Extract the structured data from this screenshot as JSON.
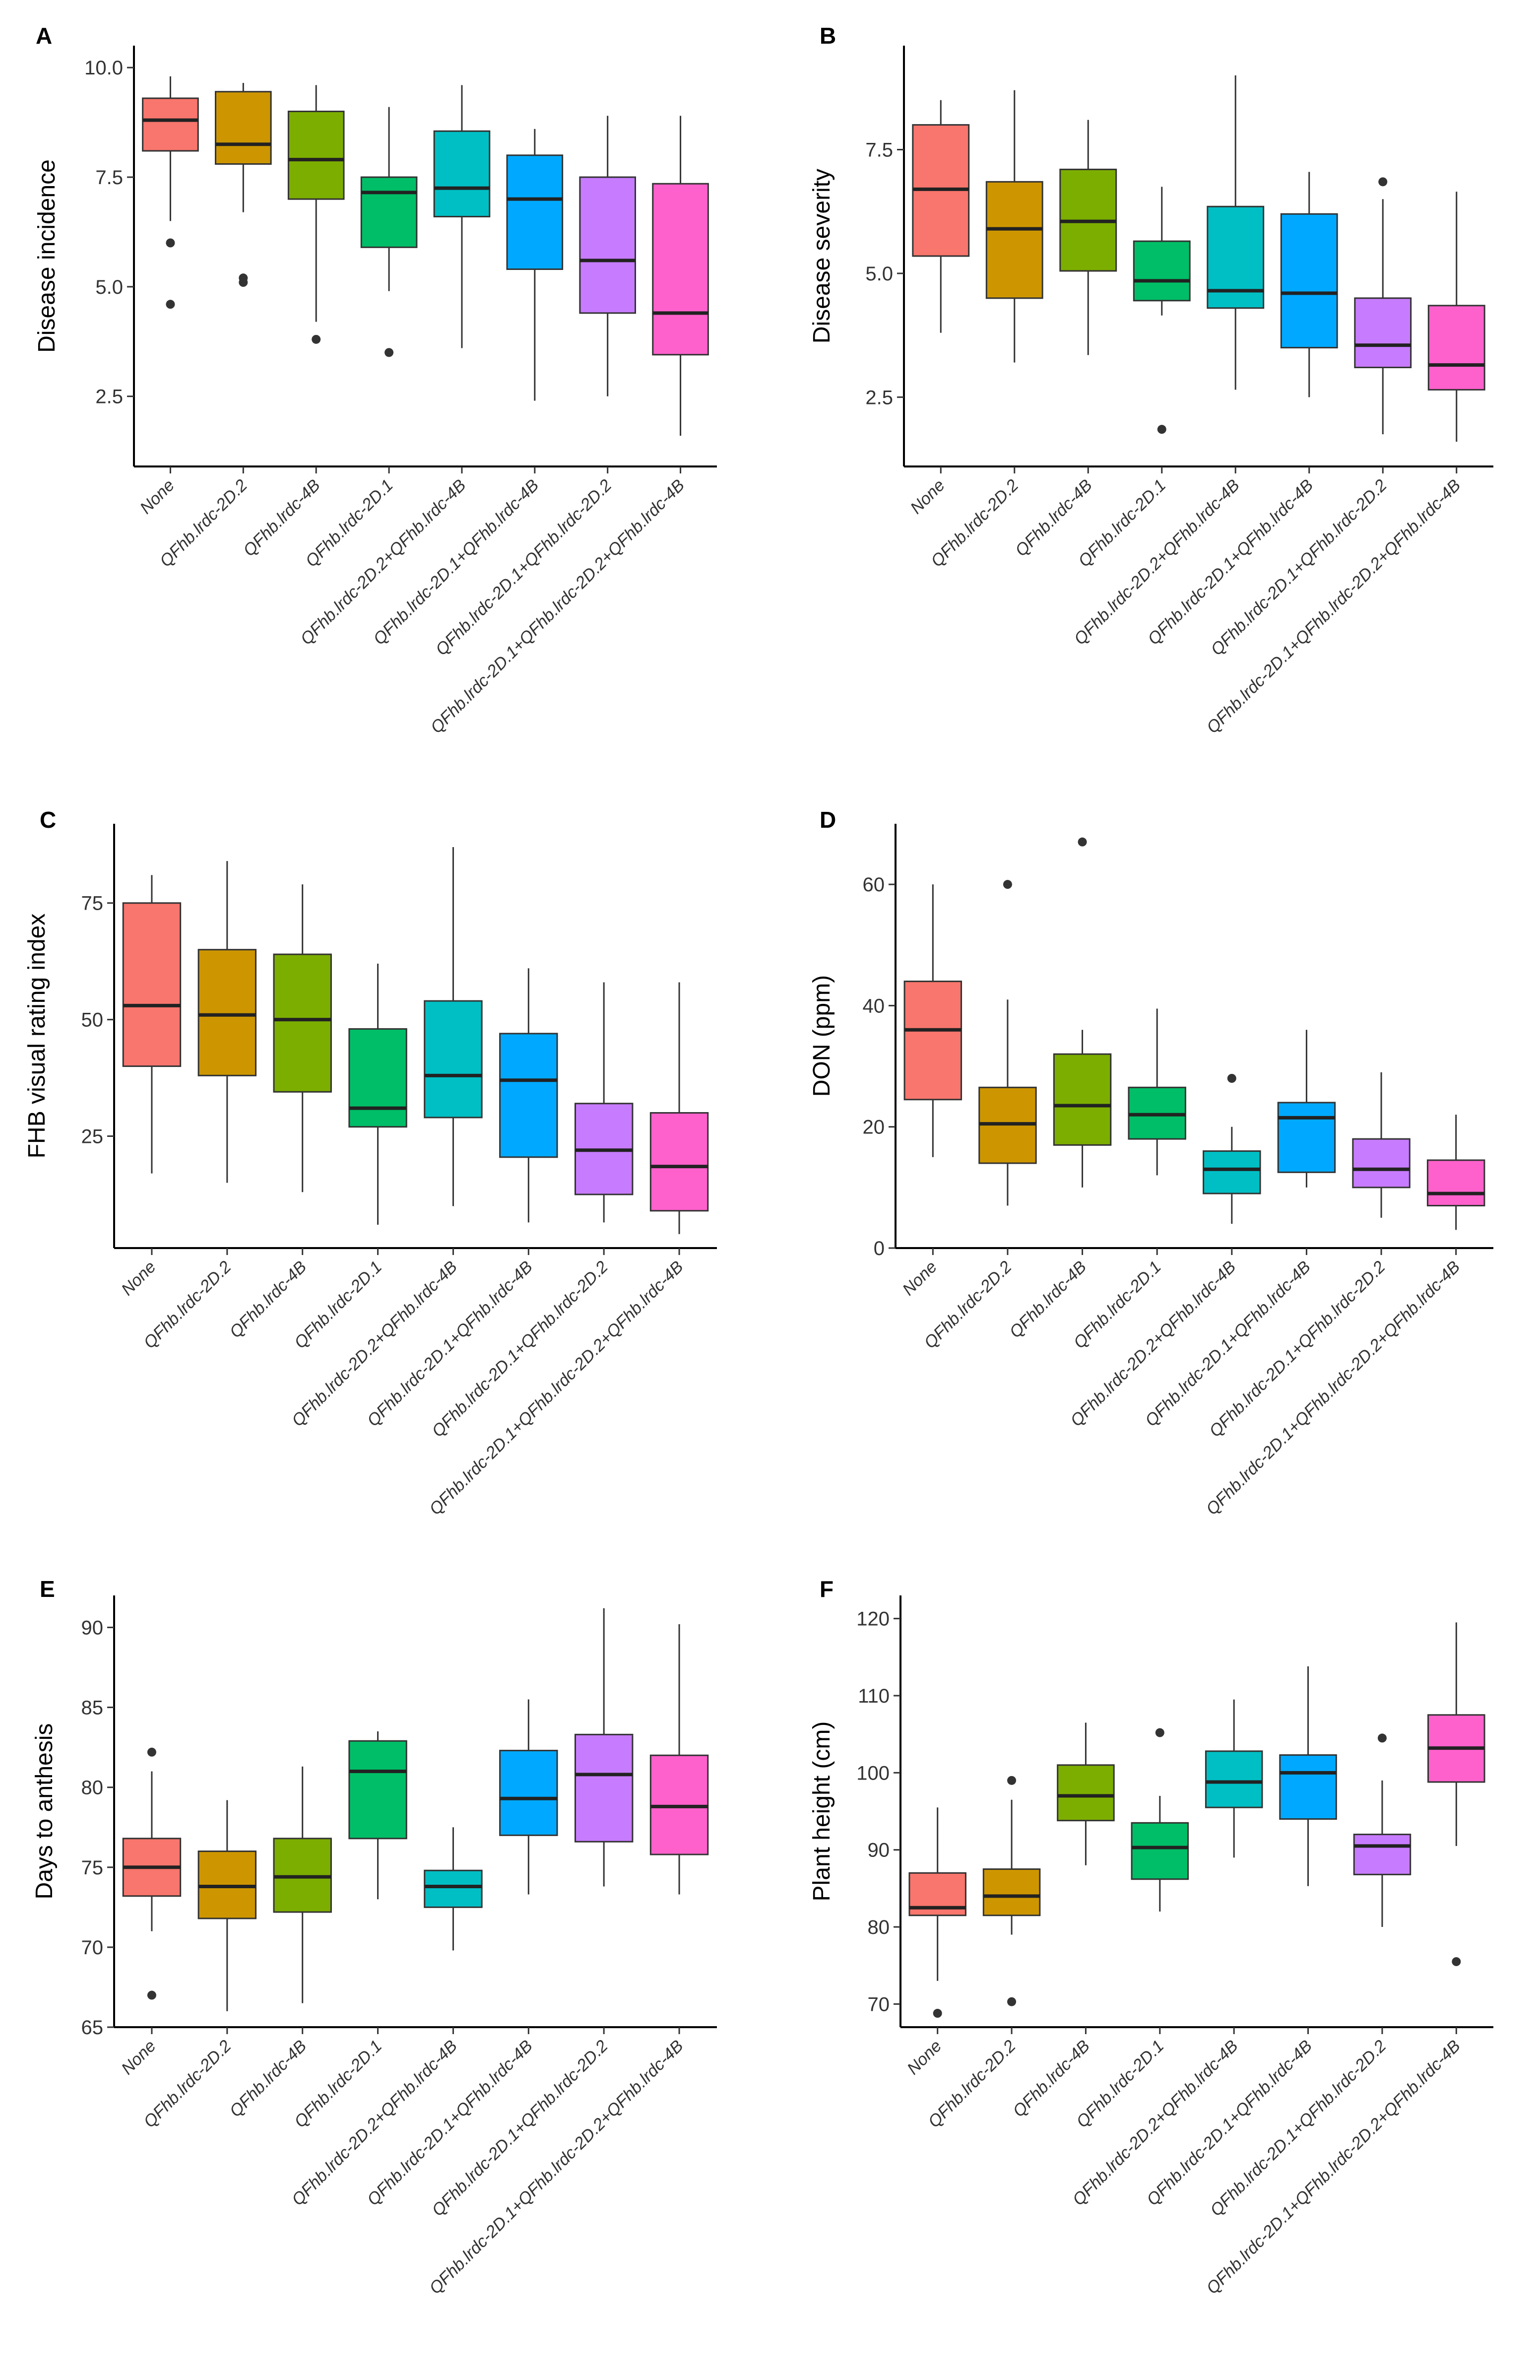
{
  "chart_data": [
    {
      "panel": "A",
      "type": "boxplot",
      "ylabel": "Disease incidence",
      "ylim": [
        0.9,
        10.5
      ],
      "yticks": [
        10.0,
        7.5,
        5.0,
        2.5
      ],
      "ytick_labels": [
        "10.0",
        "7.5",
        "5.0",
        "2.5"
      ],
      "categories": [
        "None",
        "QFhb.lrdc-2D.2",
        "QFhb.lrdc-4B",
        "QFhb.lrdc-2D.1",
        "QFhb.lrdc-2D.2+QFhb.lrdc-4B",
        "QFhb.lrdc-2D.1+QFhb.lrdc-4B",
        "QFhb.lrdc-2D.1+QFhb.lrdc-2D.2",
        "QFhb.lrdc-2D.1+QFhb.lrdc-2D.2+QFhb.lrdc-4B"
      ],
      "boxes": [
        {
          "min": 6.5,
          "q1": 8.1,
          "median": 8.8,
          "q3": 9.3,
          "max": 9.8,
          "outliers": [
            6.0,
            4.6
          ]
        },
        {
          "min": 6.7,
          "q1": 7.8,
          "median": 8.25,
          "q3": 9.45,
          "max": 9.65,
          "outliers": [
            5.2,
            5.1
          ]
        },
        {
          "min": 4.2,
          "q1": 7.0,
          "median": 7.9,
          "q3": 9.0,
          "max": 9.6,
          "outliers": [
            3.8
          ]
        },
        {
          "min": 4.9,
          "q1": 5.9,
          "median": 7.15,
          "q3": 7.5,
          "max": 9.1,
          "outliers": [
            3.5
          ]
        },
        {
          "min": 3.6,
          "q1": 6.6,
          "median": 7.25,
          "q3": 8.55,
          "max": 9.6,
          "outliers": []
        },
        {
          "min": 2.4,
          "q1": 5.4,
          "median": 7.0,
          "q3": 8.0,
          "max": 8.6,
          "outliers": []
        },
        {
          "min": 2.5,
          "q1": 4.4,
          "median": 5.6,
          "q3": 7.5,
          "max": 8.9,
          "outliers": []
        },
        {
          "min": 1.6,
          "q1": 3.45,
          "median": 4.4,
          "q3": 7.35,
          "max": 8.9,
          "outliers": []
        }
      ]
    },
    {
      "panel": "B",
      "type": "boxplot",
      "ylabel": "Disease severity",
      "ylim": [
        1.1,
        9.6
      ],
      "yticks": [
        7.5,
        5.0,
        2.5
      ],
      "ytick_labels": [
        "7.5",
        "5.0",
        "2.5"
      ],
      "categories": [
        "None",
        "QFhb.lrdc-2D.2",
        "QFhb.lrdc-4B",
        "QFhb.lrdc-2D.1",
        "QFhb.lrdc-2D.2+QFhb.lrdc-4B",
        "QFhb.lrdc-2D.1+QFhb.lrdc-4B",
        "QFhb.lrdc-2D.1+QFhb.lrdc-2D.2",
        "QFhb.lrdc-2D.1+QFhb.lrdc-2D.2+QFhb.lrdc-4B"
      ],
      "boxes": [
        {
          "min": 3.8,
          "q1": 5.35,
          "median": 6.7,
          "q3": 8.0,
          "max": 8.5,
          "outliers": []
        },
        {
          "min": 3.2,
          "q1": 4.5,
          "median": 5.9,
          "q3": 6.85,
          "max": 8.7,
          "outliers": []
        },
        {
          "min": 3.35,
          "q1": 5.05,
          "median": 6.05,
          "q3": 7.1,
          "max": 8.1,
          "outliers": []
        },
        {
          "min": 4.15,
          "q1": 4.45,
          "median": 4.85,
          "q3": 5.65,
          "max": 6.75,
          "outliers": [
            1.85
          ]
        },
        {
          "min": 2.65,
          "q1": 4.3,
          "median": 4.65,
          "q3": 6.35,
          "max": 9.0,
          "outliers": []
        },
        {
          "min": 2.5,
          "q1": 3.5,
          "median": 4.6,
          "q3": 6.2,
          "max": 7.05,
          "outliers": []
        },
        {
          "min": 1.75,
          "q1": 3.1,
          "median": 3.55,
          "q3": 4.5,
          "max": 6.5,
          "outliers": [
            6.85
          ]
        },
        {
          "min": 1.6,
          "q1": 2.65,
          "median": 3.15,
          "q3": 4.35,
          "max": 6.65,
          "outliers": []
        }
      ]
    },
    {
      "panel": "C",
      "type": "boxplot",
      "ylabel": "FHB visual rating index",
      "ylim": [
        1,
        92
      ],
      "yticks": [
        75,
        50,
        25
      ],
      "ytick_labels": [
        "75",
        "50",
        "25"
      ],
      "categories": [
        "None",
        "QFhb.lrdc-2D.2",
        "QFhb.lrdc-4B",
        "QFhb.lrdc-2D.1",
        "QFhb.lrdc-2D.2+QFhb.lrdc-4B",
        "QFhb.lrdc-2D.1+QFhb.lrdc-4B",
        "QFhb.lrdc-2D.1+QFhb.lrdc-2D.2",
        "QFhb.lrdc-2D.1+QFhb.lrdc-2D.2+QFhb.lrdc-4B"
      ],
      "boxes": [
        {
          "min": 17,
          "q1": 40,
          "median": 53,
          "q3": 75,
          "max": 81,
          "outliers": []
        },
        {
          "min": 15,
          "q1": 38,
          "median": 51,
          "q3": 65,
          "max": 84,
          "outliers": []
        },
        {
          "min": 13,
          "q1": 34.5,
          "median": 50,
          "q3": 64,
          "max": 79,
          "outliers": []
        },
        {
          "min": 6,
          "q1": 27,
          "median": 31,
          "q3": 48,
          "max": 62,
          "outliers": []
        },
        {
          "min": 10,
          "q1": 29,
          "median": 38,
          "q3": 54,
          "max": 87,
          "outliers": []
        },
        {
          "min": 6.5,
          "q1": 20.5,
          "median": 37,
          "q3": 47,
          "max": 61,
          "outliers": []
        },
        {
          "min": 6.5,
          "q1": 12.5,
          "median": 22,
          "q3": 32,
          "max": 58,
          "outliers": []
        },
        {
          "min": 4,
          "q1": 9,
          "median": 18.5,
          "q3": 30,
          "max": 58,
          "outliers": []
        }
      ]
    },
    {
      "panel": "D",
      "type": "boxplot",
      "ylabel": "DON (ppm)",
      "ylim": [
        0,
        70
      ],
      "yticks": [
        60,
        40,
        20,
        0
      ],
      "ytick_labels": [
        "60",
        "40",
        "20",
        "0"
      ],
      "categories": [
        "None",
        "QFhb.lrdc-2D.2",
        "QFhb.lrdc-4B",
        "QFhb.lrdc-2D.1",
        "QFhb.lrdc-2D.2+QFhb.lrdc-4B",
        "QFhb.lrdc-2D.1+QFhb.lrdc-4B",
        "QFhb.lrdc-2D.1+QFhb.lrdc-2D.2",
        "QFhb.lrdc-2D.1+QFhb.lrdc-2D.2+QFhb.lrdc-4B"
      ],
      "boxes": [
        {
          "min": 15,
          "q1": 24.5,
          "median": 36,
          "q3": 44,
          "max": 60,
          "outliers": []
        },
        {
          "min": 7,
          "q1": 14,
          "median": 20.5,
          "q3": 26.5,
          "max": 41,
          "outliers": [
            60
          ]
        },
        {
          "min": 10,
          "q1": 17,
          "median": 23.5,
          "q3": 32,
          "max": 36,
          "outliers": [
            67
          ]
        },
        {
          "min": 12,
          "q1": 18,
          "median": 22,
          "q3": 26.5,
          "max": 39.5,
          "outliers": []
        },
        {
          "min": 4,
          "q1": 9,
          "median": 13,
          "q3": 16,
          "max": 20,
          "outliers": [
            28
          ]
        },
        {
          "min": 10,
          "q1": 12.5,
          "median": 21.5,
          "q3": 24,
          "max": 36,
          "outliers": []
        },
        {
          "min": 5,
          "q1": 10,
          "median": 13,
          "q3": 18,
          "max": 29,
          "outliers": []
        },
        {
          "min": 3,
          "q1": 7,
          "median": 9,
          "q3": 14.5,
          "max": 22,
          "outliers": []
        }
      ]
    },
    {
      "panel": "E",
      "type": "boxplot",
      "ylabel": "Days to anthesis",
      "ylim": [
        65,
        92
      ],
      "yticks": [
        90,
        85,
        80,
        75,
        70,
        65
      ],
      "ytick_labels": [
        "90",
        "85",
        "80",
        "75",
        "70",
        "65"
      ],
      "categories": [
        "None",
        "QFhb.lrdc-2D.2",
        "QFhb.lrdc-4B",
        "QFhb.lrdc-2D.1",
        "QFhb.lrdc-2D.2+QFhb.lrdc-4B",
        "QFhb.lrdc-2D.1+QFhb.lrdc-4B",
        "QFhb.lrdc-2D.1+QFhb.lrdc-2D.2",
        "QFhb.lrdc-2D.1+QFhb.lrdc-2D.2+QFhb.lrdc-4B"
      ],
      "boxes": [
        {
          "min": 71,
          "q1": 73.2,
          "median": 75,
          "q3": 76.8,
          "max": 81,
          "outliers": [
            82.2,
            67
          ]
        },
        {
          "min": 66,
          "q1": 71.8,
          "median": 73.8,
          "q3": 76,
          "max": 79.2,
          "outliers": []
        },
        {
          "min": 66.5,
          "q1": 72.2,
          "median": 74.4,
          "q3": 76.8,
          "max": 81.3,
          "outliers": []
        },
        {
          "min": 73,
          "q1": 76.8,
          "median": 81,
          "q3": 82.9,
          "max": 83.5,
          "outliers": []
        },
        {
          "min": 69.8,
          "q1": 72.5,
          "median": 73.8,
          "q3": 74.8,
          "max": 77.5,
          "outliers": []
        },
        {
          "min": 73.3,
          "q1": 77,
          "median": 79.3,
          "q3": 82.3,
          "max": 85.5,
          "outliers": []
        },
        {
          "min": 73.8,
          "q1": 76.6,
          "median": 80.8,
          "q3": 83.3,
          "max": 91.2,
          "outliers": []
        },
        {
          "min": 73.3,
          "q1": 75.8,
          "median": 78.8,
          "q3": 82,
          "max": 90.2,
          "outliers": []
        }
      ]
    },
    {
      "panel": "F",
      "type": "boxplot",
      "ylabel": "Plant height (cm)",
      "ylim": [
        67,
        123
      ],
      "yticks": [
        120,
        110,
        100,
        90,
        80,
        70
      ],
      "ytick_labels": [
        "120",
        "110",
        "100",
        "90",
        "80",
        "70"
      ],
      "categories": [
        "None",
        "QFhb.lrdc-2D.2",
        "QFhb.lrdc-4B",
        "QFhb.lrdc-2D.1",
        "QFhb.lrdc-2D.2+QFhb.lrdc-4B",
        "QFhb.lrdc-2D.1+QFhb.lrdc-4B",
        "QFhb.lrdc-2D.1+QFhb.lrdc-2D.2",
        "QFhb.lrdc-2D.1+QFhb.lrdc-2D.2+QFhb.lrdc-4B"
      ],
      "boxes": [
        {
          "min": 73,
          "q1": 81.5,
          "median": 82.5,
          "q3": 87,
          "max": 95.5,
          "outliers": [
            68.8
          ]
        },
        {
          "min": 79,
          "q1": 81.5,
          "median": 84,
          "q3": 87.5,
          "max": 96.5,
          "outliers": [
            99,
            70.3
          ]
        },
        {
          "min": 88,
          "q1": 93.8,
          "median": 97,
          "q3": 101,
          "max": 106.5,
          "outliers": []
        },
        {
          "min": 82,
          "q1": 86.2,
          "median": 90.3,
          "q3": 93.5,
          "max": 97,
          "outliers": [
            105.2
          ]
        },
        {
          "min": 89,
          "q1": 95.5,
          "median": 98.8,
          "q3": 102.8,
          "max": 109.5,
          "outliers": []
        },
        {
          "min": 85.3,
          "q1": 94,
          "median": 100,
          "q3": 102.3,
          "max": 113.8,
          "outliers": []
        },
        {
          "min": 80,
          "q1": 86.8,
          "median": 90.5,
          "q3": 92,
          "max": 99,
          "outliers": [
            104.5
          ]
        },
        {
          "min": 90.5,
          "q1": 98.8,
          "median": 103.2,
          "q3": 107.5,
          "max": 119.5,
          "outliers": [
            75.5
          ]
        }
      ]
    }
  ],
  "colors": [
    "#F8766D",
    "#CD9600",
    "#7CAE00",
    "#00BE67",
    "#00BFC4",
    "#00A9FF",
    "#C77CFF",
    "#FF61CC"
  ],
  "panel_letters": [
    "A",
    "B",
    "C",
    "D",
    "E",
    "F"
  ]
}
